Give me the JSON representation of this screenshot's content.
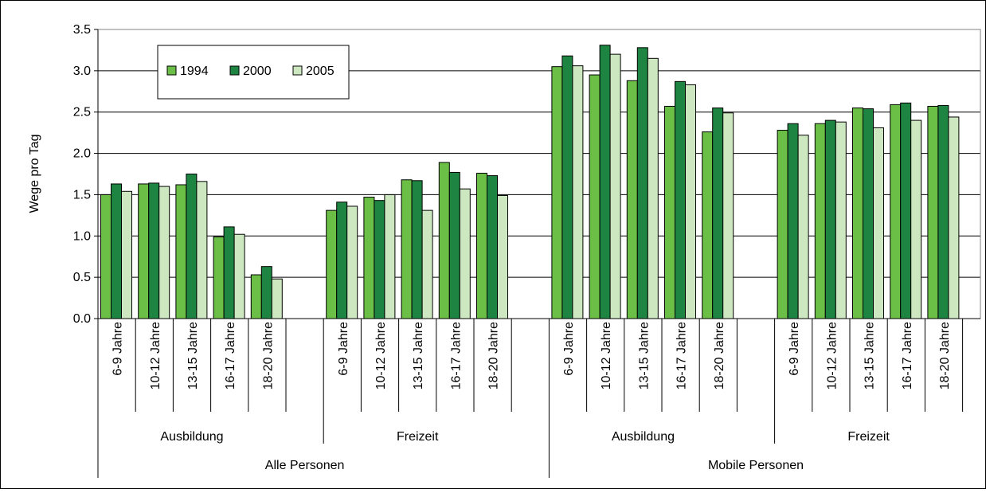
{
  "chart_data": {
    "type": "bar",
    "ylabel": "Wege pro Tag",
    "ylim": [
      0,
      3.5
    ],
    "yticks": [
      "0.0",
      "0.5",
      "1.0",
      "1.5",
      "2.0",
      "2.5",
      "3.0",
      "3.5"
    ],
    "grid": true,
    "legend_position": "top-left",
    "groups": [
      {
        "label": "Alle Personen",
        "subgroups": [
          {
            "label": "Ausbildung",
            "categories": [
              "6-9 Jahre",
              "10-12 Jahre",
              "13-15 Jahre",
              "16-17 Jahre",
              "18-20 Jahre"
            ],
            "series": [
              {
                "name": "1994",
                "values": [
                  1.5,
                  1.63,
                  1.62,
                  0.99,
                  0.53
                ]
              },
              {
                "name": "2000",
                "values": [
                  1.63,
                  1.64,
                  1.75,
                  1.11,
                  0.63
                ]
              },
              {
                "name": "2005",
                "values": [
                  1.54,
                  1.6,
                  1.66,
                  1.02,
                  0.48
                ]
              }
            ]
          },
          {
            "label": "Freizeit",
            "categories": [
              "6-9 Jahre",
              "10-12 Jahre",
              "13-15 Jahre",
              "16-17 Jahre",
              "18-20 Jahre"
            ],
            "series": [
              {
                "name": "1994",
                "values": [
                  1.31,
                  1.47,
                  1.68,
                  1.89,
                  1.76
                ]
              },
              {
                "name": "2000",
                "values": [
                  1.41,
                  1.43,
                  1.67,
                  1.77,
                  1.73
                ]
              },
              {
                "name": "2005",
                "values": [
                  1.36,
                  1.5,
                  1.31,
                  1.57,
                  1.49
                ]
              }
            ]
          }
        ]
      },
      {
        "label": "Mobile Personen",
        "subgroups": [
          {
            "label": "Ausbildung",
            "categories": [
              "6-9 Jahre",
              "10-12 Jahre",
              "13-15 Jahre",
              "16-17 Jahre",
              "18-20 Jahre"
            ],
            "series": [
              {
                "name": "1994",
                "values": [
                  3.05,
                  2.95,
                  2.88,
                  2.57,
                  2.26
                ]
              },
              {
                "name": "2000",
                "values": [
                  3.18,
                  3.31,
                  3.28,
                  2.87,
                  2.55
                ]
              },
              {
                "name": "2005",
                "values": [
                  3.06,
                  3.2,
                  3.15,
                  2.83,
                  2.49
                ]
              }
            ]
          },
          {
            "label": "Freizeit",
            "categories": [
              "6-9 Jahre",
              "10-12 Jahre",
              "13-15 Jahre",
              "16-17 Jahre",
              "18-20 Jahre"
            ],
            "series": [
              {
                "name": "1994",
                "values": [
                  2.28,
                  2.36,
                  2.55,
                  2.59,
                  2.57
                ]
              },
              {
                "name": "2000",
                "values": [
                  2.36,
                  2.4,
                  2.54,
                  2.61,
                  2.58
                ]
              },
              {
                "name": "2005",
                "values": [
                  2.22,
                  2.38,
                  2.31,
                  2.4,
                  2.44
                ]
              }
            ]
          }
        ]
      }
    ],
    "colors": {
      "1994": "#6bbf46",
      "2000": "#1e8441",
      "2005": "#cde8c0"
    }
  }
}
